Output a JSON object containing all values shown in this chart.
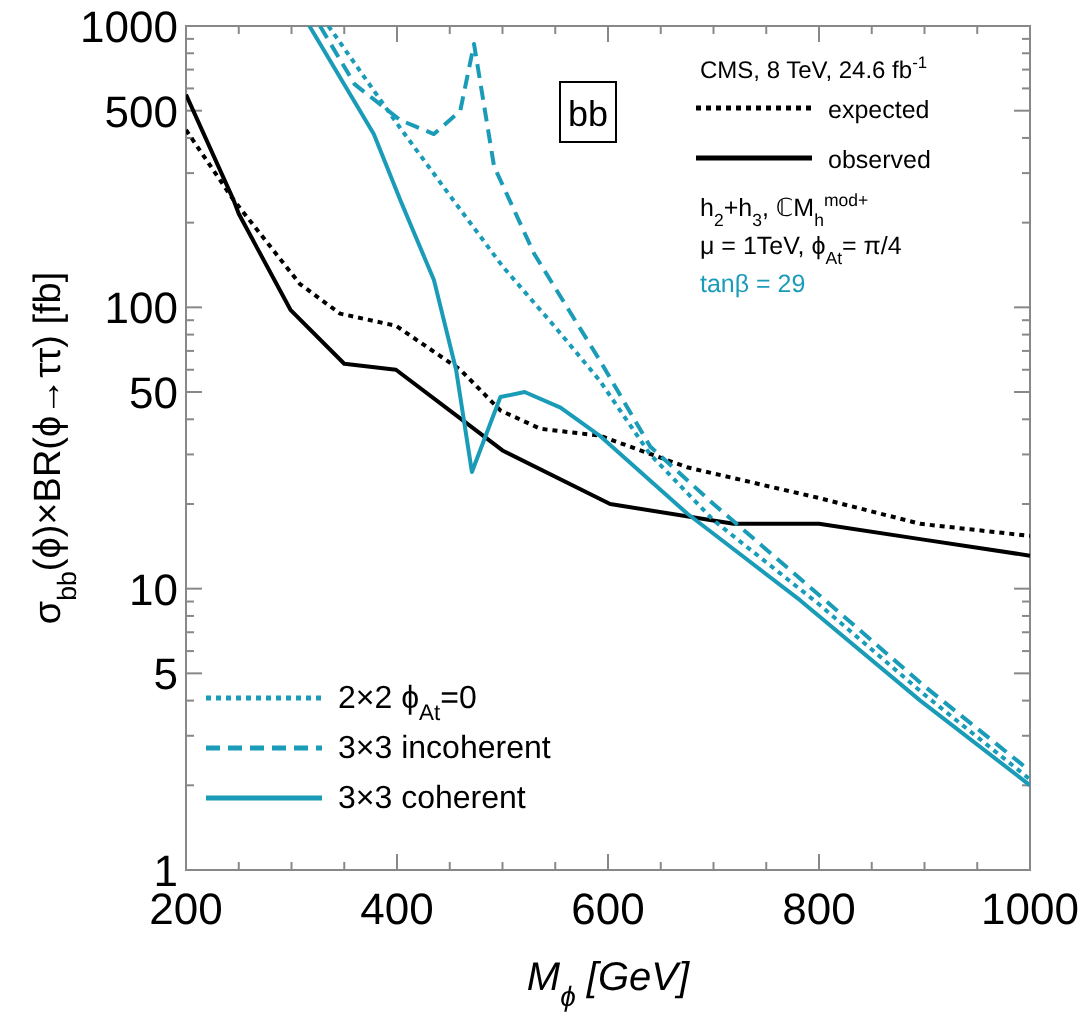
{
  "chart_data": {
    "type": "line",
    "xlabel": "M$_{ϕ}$ [GeV]",
    "ylabel": "σ$_{bb}$(ϕ)×BR(ϕ→ττ) [fb]",
    "log": "y",
    "grid": false,
    "legend": "bottom left",
    "xlim": [
      200,
      1000
    ],
    "ylim": [
      1,
      1000
    ],
    "xticks": [
      200,
      {
        "value": 250,
        "label": null
      },
      {
        "value": 300,
        "label": null
      },
      {
        "value": 350,
        "label": null
      },
      400,
      {
        "value": 450,
        "label": null
      },
      {
        "value": 500,
        "label": null
      },
      {
        "value": 550,
        "label": null
      },
      600,
      {
        "value": 650,
        "label": null
      },
      {
        "value": 700,
        "label": null
      },
      {
        "value": 750,
        "label": null
      },
      800,
      {
        "value": 850,
        "label": null
      },
      {
        "value": 900,
        "label": null
      },
      {
        "value": 950,
        "label": null
      },
      1000
    ],
    "yticks": [
      1,
      {
        "value": 2,
        "label": null
      },
      {
        "value": 3,
        "label": null
      },
      {
        "value": 4,
        "label": null
      },
      5,
      {
        "value": 6,
        "label": null
      },
      {
        "value": 7,
        "label": null
      },
      {
        "value": 8,
        "label": null
      },
      {
        "value": 9,
        "label": null
      },
      10,
      {
        "value": 20,
        "label": null
      },
      {
        "value": 30,
        "label": null
      },
      {
        "value": 40,
        "label": null
      },
      50,
      {
        "value": 60,
        "label": null
      },
      {
        "value": 70,
        "label": null
      },
      {
        "value": 80,
        "label": null
      },
      {
        "value": 90,
        "label": null
      },
      100,
      {
        "value": 200,
        "label": null
      },
      {
        "value": 300,
        "label": null
      },
      {
        "value": 400,
        "label": null
      },
      500,
      {
        "value": 600,
        "label": null
      },
      {
        "value": 700,
        "label": null
      },
      {
        "value": 800,
        "label": null
      },
      {
        "value": 900,
        "label": null
      },
      1000
    ],
    "annotations": [
      "bb",
      "CMS, 8 TeV, 24.6 fb$^{-1}$",
      "h$_{2}$+h$_{3}$, ℂM$_{h}$$^{mod+}$",
      "μ = 1TeV, ϕ$_{At}$= π/4",
      "tanβ = 29"
    ],
    "series": [
      {
        "name": "expected",
        "color": "#000000",
        "line_style": "dotted",
        "x": [
          200,
          245,
          308,
          346,
          399,
          460,
          498,
          536,
          592,
          675,
          800,
          896,
          1000
        ],
        "values": [
          427,
          241,
          121,
          95,
          86,
          60,
          43,
          37,
          35,
          27,
          21,
          17,
          15.4
        ]
      },
      {
        "name": "observed",
        "color": "#000000",
        "line_style": "solid",
        "x": [
          200,
          245,
          250,
          299,
          350,
          399,
          469,
          500,
          602,
          719,
          800,
          896,
          1000
        ],
        "values": [
          570,
          241,
          215,
          98,
          63,
          60,
          38,
          31,
          20,
          17,
          17,
          15,
          13.1
        ]
      },
      {
        "name": "2×2 ϕ$_{At}$=0",
        "color": "#1a9cb8",
        "line_style": "dotted",
        "x": [
          335,
          400,
          450,
          500,
          550,
          592,
          640,
          700,
          800,
          900,
          1000
        ],
        "values": [
          1000,
          450,
          250,
          140,
          85,
          55,
          30,
          17.5,
          8.8,
          4.2,
          2.1
        ]
      },
      {
        "name": "3×3 incoherent",
        "color": "#1a9cb8",
        "line_style": "dashed",
        "x": [
          327,
          360,
          403,
          435,
          460,
          473,
          492,
          530,
          592,
          640,
          700,
          800,
          900,
          1000
        ],
        "values": [
          1000,
          620,
          463,
          413,
          500,
          863,
          317,
          155,
          65,
          32,
          20,
          9.5,
          4.5,
          2.25
        ]
      },
      {
        "name": "3×3 coherent",
        "color": "#1a9cb8",
        "line_style": "solid",
        "x": [
          317,
          378,
          403,
          435,
          456,
          471,
          498,
          521,
          555,
          592,
          675,
          782,
          896,
          1000
        ],
        "values": [
          1000,
          413,
          241,
          125,
          60,
          26,
          48,
          50,
          44,
          35,
          18.5,
          9.1,
          4.0,
          2.0
        ]
      }
    ]
  }
}
